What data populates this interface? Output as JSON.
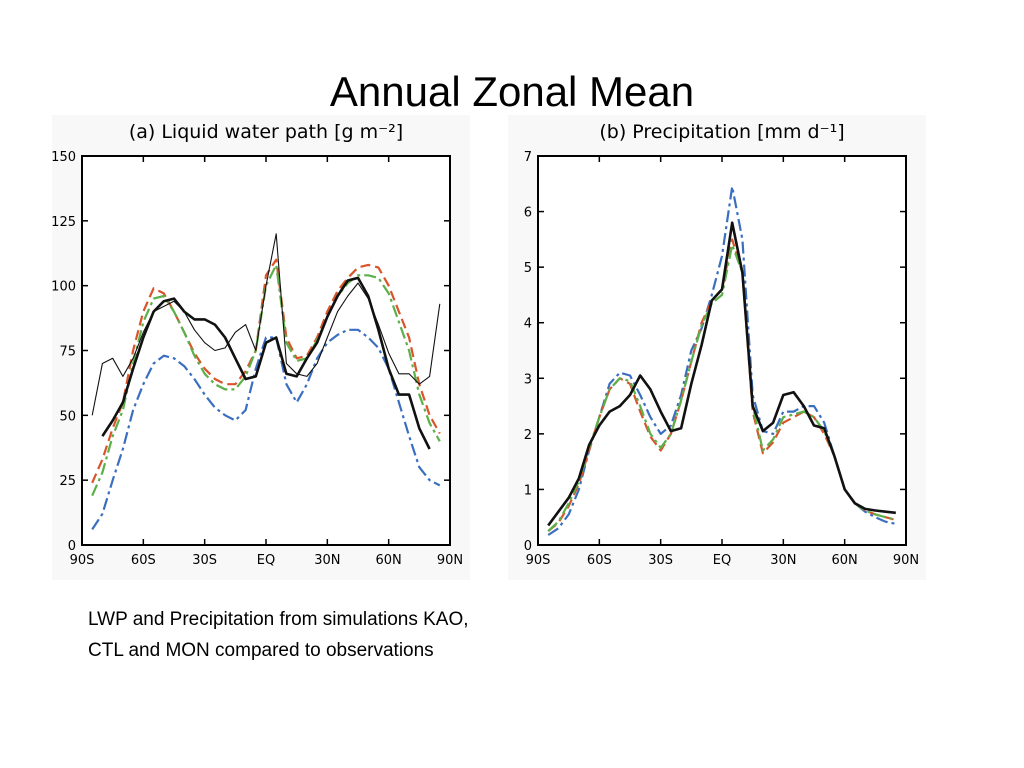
{
  "title": "Annual Zonal Mean",
  "caption": [
    "LWP and Precipitation from simulations KAO,",
    "CTL and MON compared to observations"
  ],
  "chart_data": [
    {
      "type": "line",
      "title": "(a) Liquid water path [g m⁻²]",
      "x": [
        -85,
        -80,
        -75,
        -70,
        -65,
        -60,
        -55,
        -50,
        -45,
        -40,
        -35,
        -30,
        -25,
        -20,
        -15,
        -10,
        -5,
        0,
        5,
        10,
        15,
        20,
        25,
        30,
        35,
        40,
        45,
        50,
        55,
        60,
        65,
        70,
        75,
        80,
        85
      ],
      "xlim": [
        -90,
        90
      ],
      "xticks": [
        {
          "value": -90,
          "label": "90S"
        },
        {
          "value": -60,
          "label": "60S"
        },
        {
          "value": -30,
          "label": "30S"
        },
        {
          "value": 0,
          "label": "EQ"
        },
        {
          "value": 30,
          "label": "30N"
        },
        {
          "value": 60,
          "label": "60N"
        },
        {
          "value": 90,
          "label": "90N"
        }
      ],
      "ylim": [
        0,
        150
      ],
      "yticks": [
        0,
        25,
        50,
        75,
        100,
        125,
        150
      ],
      "series": [
        {
          "color": "#d9542a",
          "dash": "dashed",
          "width": 2.2,
          "values": [
            24,
            33,
            45,
            55,
            75,
            90,
            99,
            97,
            90,
            82,
            74,
            68,
            64,
            62,
            62,
            67,
            75,
            104,
            110,
            80,
            72,
            73,
            80,
            90,
            98,
            103,
            107,
            108,
            107,
            100,
            90,
            80,
            62,
            50,
            43
          ]
        },
        {
          "color": "#5bb04a",
          "dash": "dashdot",
          "width": 2.2,
          "values": [
            19,
            28,
            42,
            52,
            70,
            86,
            95,
            96,
            90,
            82,
            73,
            66,
            62,
            60,
            60,
            65,
            75,
            100,
            108,
            78,
            71,
            72,
            79,
            88,
            96,
            101,
            104,
            104,
            103,
            97,
            86,
            75,
            58,
            47,
            40
          ]
        },
        {
          "color": "#3a6fc0",
          "dash": "dashdot",
          "width": 2.2,
          "values": [
            6,
            12,
            25,
            37,
            52,
            62,
            70,
            73,
            72,
            69,
            64,
            58,
            53,
            50,
            48,
            52,
            68,
            80,
            80,
            62,
            55,
            62,
            72,
            78,
            81,
            83,
            83,
            80,
            76,
            68,
            55,
            42,
            30,
            25,
            23
          ]
        },
        {
          "color": "#111111",
          "dash": "solid",
          "width": 1.1,
          "values": [
            50,
            70,
            72,
            65,
            72,
            82,
            90,
            92,
            94,
            90,
            83,
            78,
            75,
            76,
            82,
            85,
            75,
            100,
            120,
            70,
            66,
            65,
            70,
            80,
            90,
            96,
            101,
            95,
            85,
            74,
            66,
            66,
            62,
            65,
            93
          ]
        },
        {
          "color": "#111111",
          "dash": "solid",
          "width": 2.6,
          "values": [
            null,
            42,
            48,
            55,
            68,
            80,
            90,
            94,
            95,
            90,
            87,
            87,
            85,
            80,
            72,
            64,
            65,
            78,
            80,
            66,
            65,
            72,
            78,
            88,
            96,
            102,
            103,
            96,
            83,
            68,
            58,
            58,
            45,
            37,
            null
          ]
        }
      ]
    },
    {
      "type": "line",
      "title": "(b) Precipitation [mm d⁻¹]",
      "x": [
        -85,
        -80,
        -75,
        -70,
        -65,
        -60,
        -55,
        -50,
        -45,
        -40,
        -35,
        -30,
        -25,
        -20,
        -15,
        -10,
        -5,
        0,
        5,
        10,
        15,
        20,
        25,
        30,
        35,
        40,
        45,
        50,
        55,
        60,
        65,
        70,
        75,
        80,
        85
      ],
      "xlim": [
        -90,
        90
      ],
      "xticks": [
        {
          "value": -90,
          "label": "90S"
        },
        {
          "value": -60,
          "label": "60S"
        },
        {
          "value": -30,
          "label": "30S"
        },
        {
          "value": 0,
          "label": "EQ"
        },
        {
          "value": 30,
          "label": "30N"
        },
        {
          "value": 60,
          "label": "60N"
        },
        {
          "value": 90,
          "label": "90N"
        }
      ],
      "ylim": [
        0,
        7
      ],
      "yticks": [
        0,
        1,
        2,
        3,
        4,
        5,
        6,
        7
      ],
      "series": [
        {
          "color": "#3a6fc0",
          "dash": "dashdot",
          "width": 2.2,
          "values": [
            0.18,
            0.3,
            0.55,
            1.0,
            1.7,
            2.3,
            2.9,
            3.1,
            3.05,
            2.7,
            2.3,
            2.0,
            2.15,
            2.7,
            3.5,
            3.9,
            4.5,
            5.2,
            6.45,
            5.5,
            2.7,
            2.05,
            2.0,
            2.4,
            2.4,
            2.5,
            2.5,
            2.2,
            1.6,
            1.0,
            0.75,
            0.6,
            0.5,
            0.42,
            0.38
          ]
        },
        {
          "color": "#d9542a",
          "dash": "dashed",
          "width": 2.2,
          "values": [
            0.25,
            0.4,
            0.7,
            1.1,
            1.7,
            2.3,
            2.8,
            3.0,
            2.9,
            2.4,
            1.95,
            1.7,
            2.0,
            2.6,
            3.3,
            4.0,
            4.4,
            4.6,
            5.5,
            4.9,
            2.4,
            1.65,
            1.85,
            2.2,
            2.3,
            2.4,
            2.3,
            2.0,
            1.6,
            1.0,
            0.75,
            0.62,
            0.55,
            0.5,
            0.45
          ]
        },
        {
          "color": "#5bb04a",
          "dash": "dashdot",
          "width": 2.2,
          "values": [
            0.25,
            0.42,
            0.75,
            1.15,
            1.75,
            2.3,
            2.8,
            3.0,
            2.95,
            2.5,
            2.0,
            1.75,
            2.0,
            2.6,
            3.3,
            3.95,
            4.35,
            4.5,
            5.4,
            4.9,
            2.5,
            1.7,
            1.9,
            2.3,
            2.35,
            2.4,
            2.3,
            2.05,
            1.6,
            1.0,
            0.75,
            0.62,
            0.55,
            0.5,
            0.45
          ]
        },
        {
          "color": "#111111",
          "dash": "solid",
          "width": 2.6,
          "values": [
            0.35,
            0.6,
            0.85,
            1.2,
            1.8,
            2.15,
            2.4,
            2.5,
            2.7,
            3.05,
            2.8,
            2.4,
            2.05,
            2.1,
            2.9,
            3.6,
            4.4,
            4.6,
            5.8,
            4.9,
            2.5,
            2.05,
            2.2,
            2.7,
            2.75,
            2.5,
            2.15,
            2.1,
            1.6,
            1.0,
            0.75,
            0.65,
            0.62,
            0.6,
            0.58
          ]
        }
      ]
    }
  ]
}
